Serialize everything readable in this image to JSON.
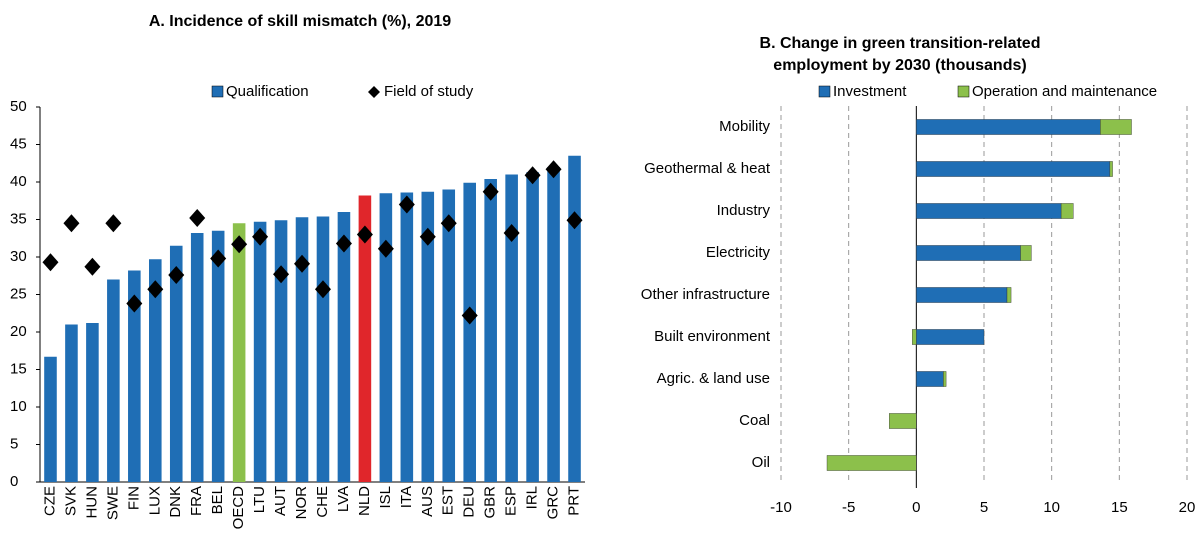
{
  "chart_data": [
    {
      "type": "bar",
      "title": "A. Incidence of skill mismatch (%), 2019",
      "categories": [
        "CZE",
        "SVK",
        "HUN",
        "SWE",
        "FIN",
        "LUX",
        "DNK",
        "FRA",
        "BEL",
        "OECD",
        "LTU",
        "AUT",
        "NOR",
        "CHE",
        "LVA",
        "NLD",
        "ISL",
        "ITA",
        "AUS",
        "EST",
        "DEU",
        "GBR",
        "ESP",
        "IRL",
        "GRC",
        "PRT"
      ],
      "series": [
        {
          "name": "Qualification",
          "color": "#1f6eb5",
          "point_colors": {
            "OECD": "#8cc04b",
            "NLD": "#e0262b"
          },
          "values": [
            16.7,
            21,
            21.2,
            27,
            28.2,
            29.7,
            31.5,
            33.2,
            33.5,
            34.5,
            34.7,
            34.9,
            35.3,
            35.4,
            36,
            38.2,
            38.5,
            38.6,
            38.7,
            39,
            39.9,
            40.4,
            41,
            41.3,
            42,
            43.5
          ]
        },
        {
          "name": "Field of study",
          "type": "marker",
          "color": "#000000",
          "values": [
            29.3,
            34.5,
            28.7,
            34.5,
            23.8,
            25.7,
            27.6,
            35.2,
            29.8,
            31.7,
            32.7,
            27.7,
            29.1,
            25.7,
            31.8,
            33,
            31.1,
            37,
            32.7,
            34.5,
            22.2,
            38.7,
            33.2,
            40.9,
            41.7,
            34.9
          ]
        }
      ],
      "ylim": [
        0,
        50
      ],
      "yticks": [
        0,
        5,
        10,
        15,
        20,
        25,
        30,
        35,
        40,
        45,
        50
      ],
      "grid": false
    },
    {
      "type": "stacked_barh",
      "title": [
        "B. Change in green transition-related",
        "employment  by 2030 (thousands)"
      ],
      "categories": [
        "Mobility",
        "Geothermal & heat",
        "Industry",
        "Electricity",
        "Other infrastructure",
        "Built environment",
        "Agric. & land use",
        "Coal",
        "Oil"
      ],
      "series": [
        {
          "name": "Investment",
          "color": "#1f6eb5",
          "values": [
            13.6,
            14.3,
            10.7,
            7.7,
            6.7,
            5,
            2,
            0,
            0
          ]
        },
        {
          "name": "Operation and maintenance",
          "color": "#8cc04b",
          "values": [
            2.3,
            0.2,
            0.9,
            0.8,
            0.3,
            -0.3,
            0.2,
            -2,
            -6.6
          ]
        }
      ],
      "xlim": [
        -10,
        20
      ],
      "xticks": [
        -10,
        -5,
        0,
        5,
        10,
        15,
        20
      ],
      "grid": true
    }
  ]
}
